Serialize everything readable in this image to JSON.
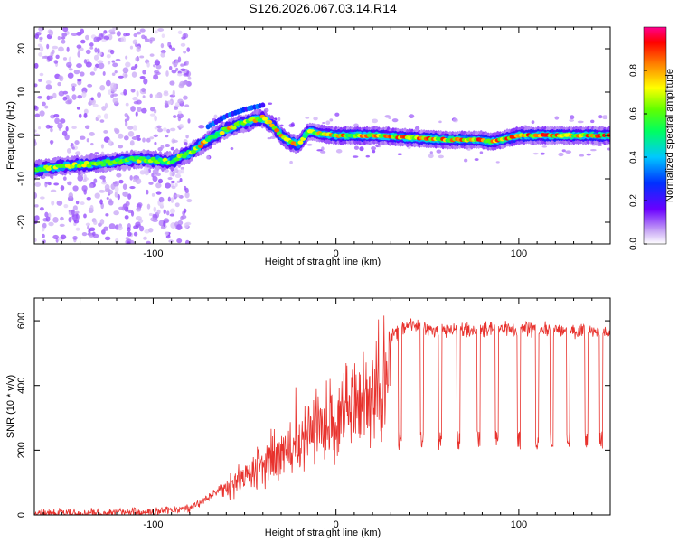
{
  "title": "S126.2026.067.03.14.R14",
  "colors": {
    "snr_line": "#e8322d",
    "axis": "#000000",
    "background": "#ffffff"
  },
  "chart_data": [
    {
      "id": "spectrogram",
      "type": "heatmap",
      "xlabel": "Height of straight line (km)",
      "ylabel": "Frequency (Hz)",
      "xlim": [
        -165,
        150
      ],
      "ylim": [
        -25,
        25
      ],
      "xticks": [
        -100,
        0,
        100
      ],
      "xtick_labels": [
        "-100",
        "0",
        "100"
      ],
      "yticks": [
        -20,
        -10,
        0,
        10,
        20
      ],
      "ytick_labels": [
        "-20",
        "-10",
        "0",
        "10",
        "20"
      ],
      "ridge": {
        "x": [
          -165,
          -150,
          -130,
          -110,
          -90,
          -80,
          -70,
          -60,
          -50,
          -40,
          -35,
          -30,
          -25,
          -20,
          -15,
          -10,
          0,
          20,
          40,
          60,
          80,
          85,
          100,
          120,
          150
        ],
        "y": [
          -8,
          -7,
          -6.5,
          -5.5,
          -6,
          -4,
          -1,
          1.5,
          3,
          4,
          2.5,
          0,
          -1.5,
          -2,
          1,
          0.5,
          0,
          0,
          -0.5,
          -1,
          -1,
          -1.5,
          0,
          0,
          0
        ]
      },
      "colorbar": {
        "label": "Normalized spectral amplitude",
        "range": [
          0,
          1
        ],
        "ticks": [
          0.0,
          0.2,
          0.4,
          0.6,
          0.8
        ],
        "tick_labels": [
          "0.0",
          "0.2",
          "0.4",
          "0.6",
          "0.8"
        ]
      }
    },
    {
      "id": "snr",
      "type": "line",
      "xlabel": "Height of straight line (km)",
      "ylabel": "SNR (10 * v/v)",
      "xlim": [
        -165,
        150
      ],
      "ylim": [
        0,
        670
      ],
      "xticks": [
        -100,
        0,
        100
      ],
      "xtick_labels": [
        "-100",
        "0",
        "100"
      ],
      "yticks": [
        0,
        200,
        400,
        600
      ],
      "ytick_labels": [
        "0",
        "200",
        "400",
        "600"
      ],
      "envelope": {
        "x": [
          -165,
          -140,
          -100,
          -80,
          -70,
          -60,
          -50,
          -40,
          -30,
          -20,
          -10,
          0,
          10,
          20,
          30,
          40,
          60,
          80,
          100,
          120,
          150
        ],
        "y": [
          15,
          15,
          20,
          30,
          60,
          110,
          160,
          200,
          260,
          300,
          350,
          390,
          450,
          520,
          570,
          600,
          590,
          590,
          590,
          590,
          580
        ]
      },
      "dips": [
        35,
        47,
        57,
        67,
        78,
        88,
        100,
        110,
        118,
        127,
        137,
        145
      ]
    }
  ]
}
